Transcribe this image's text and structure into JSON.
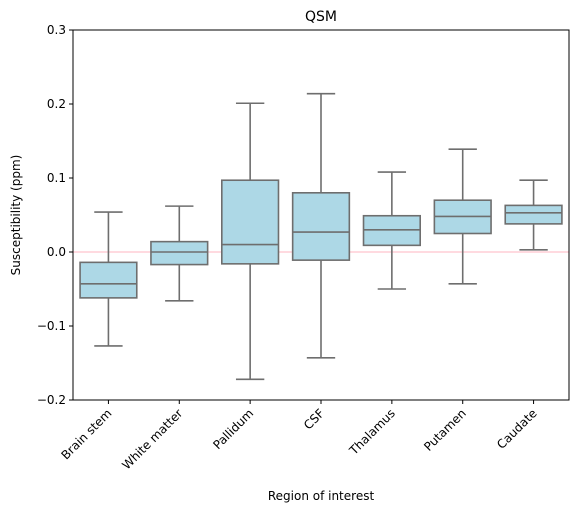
{
  "chart_data": {
    "type": "box",
    "title": "QSM",
    "xlabel": "Region of interest",
    "ylabel": "Susceptibility (ppm)",
    "ylim": [
      -0.2,
      0.3
    ],
    "yticks": [
      -0.2,
      -0.1,
      0.0,
      0.1,
      0.2,
      0.3
    ],
    "ytick_labels": [
      "−0.2",
      "−0.1",
      "0.0",
      "0.1",
      "0.2",
      "0.3"
    ],
    "categories": [
      "Brain stem",
      "White matter",
      "Pallidum",
      "CSF",
      "Thalamus",
      "Putamen",
      "Caudate"
    ],
    "boxes": [
      {
        "whisker_low": -0.127,
        "q1": -0.062,
        "median": -0.043,
        "q3": -0.014,
        "whisker_high": 0.054
      },
      {
        "whisker_low": -0.066,
        "q1": -0.017,
        "median": 0.0,
        "q3": 0.014,
        "whisker_high": 0.062
      },
      {
        "whisker_low": -0.172,
        "q1": -0.016,
        "median": 0.01,
        "q3": 0.097,
        "whisker_high": 0.201
      },
      {
        "whisker_low": -0.143,
        "q1": -0.011,
        "median": 0.027,
        "q3": 0.08,
        "whisker_high": 0.214
      },
      {
        "whisker_low": -0.05,
        "q1": 0.009,
        "median": 0.03,
        "q3": 0.049,
        "whisker_high": 0.108
      },
      {
        "whisker_low": -0.043,
        "q1": 0.025,
        "median": 0.048,
        "q3": 0.07,
        "whisker_high": 0.139
      },
      {
        "whisker_low": 0.003,
        "q1": 0.038,
        "median": 0.053,
        "q3": 0.063,
        "whisker_high": 0.097
      }
    ],
    "reference_line": 0.0,
    "grid": false,
    "colors": {
      "box_fill": "#add8e6",
      "box_edge": "#6e6e6e",
      "reference_line": "#ffb6c1"
    }
  }
}
